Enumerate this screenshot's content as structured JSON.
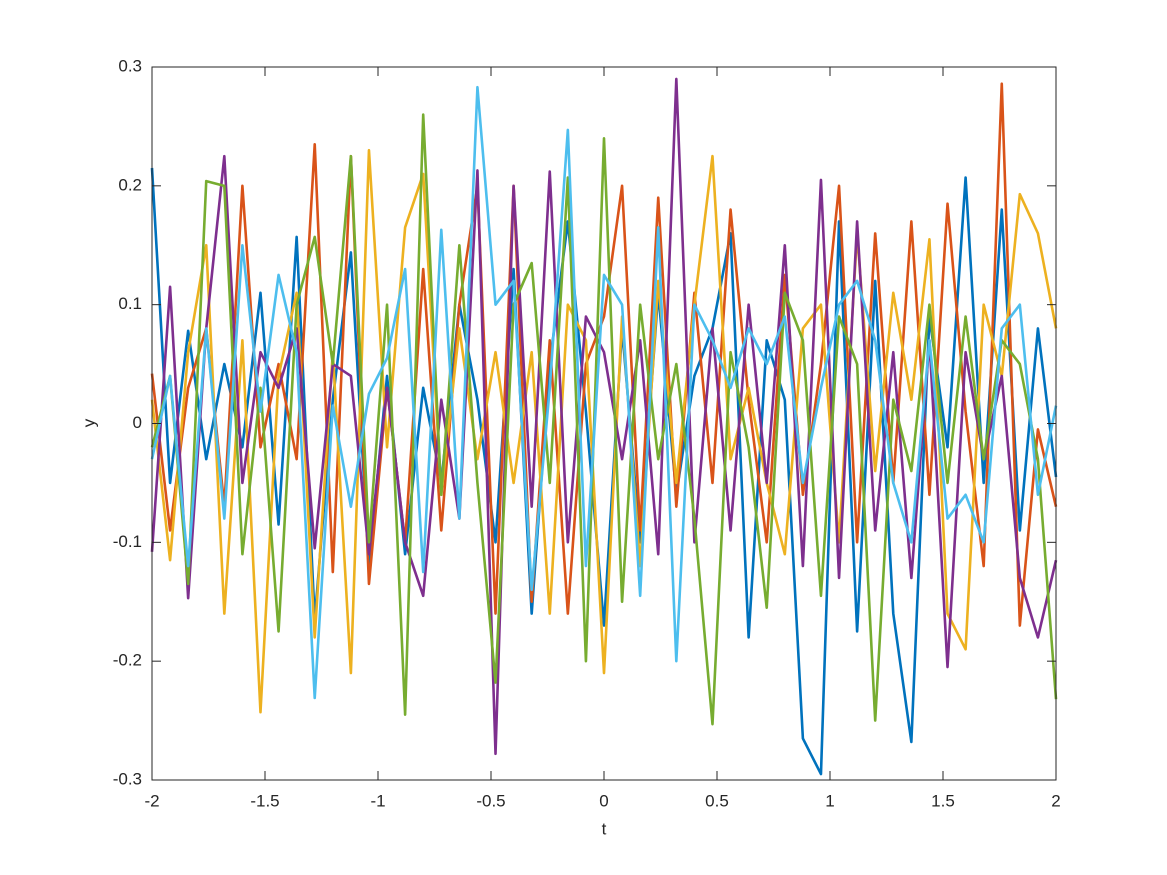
{
  "chart_data": {
    "type": "line",
    "x_label": "t",
    "y_label": "y",
    "x": [
      -2,
      -1.92,
      -1.84,
      -1.76,
      -1.68,
      -1.6,
      -1.52,
      -1.44,
      -1.36,
      -1.28,
      -1.2,
      -1.12,
      -1.04,
      -0.96,
      -0.88,
      -0.8,
      -0.72,
      -0.64,
      -0.56,
      -0.48,
      -0.4,
      -0.32,
      -0.24,
      -0.16,
      -0.08,
      0,
      0.08,
      0.16,
      0.24,
      0.32,
      0.4,
      0.48,
      0.56,
      0.64,
      0.72,
      0.8,
      0.88,
      0.96,
      1.04,
      1.12,
      1.2,
      1.28,
      1.36,
      1.44,
      1.52,
      1.6,
      1.68,
      1.76,
      1.84,
      1.92,
      2
    ],
    "series": [
      {
        "color": "#0072BD",
        "values": [
          0.215,
          -0.05,
          0.078,
          -0.03,
          0.05,
          -0.02,
          0.11,
          -0.085,
          0.157,
          -0.165,
          0.02,
          0.144,
          -0.12,
          0.04,
          -0.11,
          0.03,
          -0.05,
          0.1,
          0.02,
          -0.1,
          0.13,
          -0.16,
          0.05,
          0.17,
          0.01,
          -0.17,
          0.08,
          -0.1,
          0.11,
          -0.06,
          0.04,
          0.08,
          0.16,
          -0.18,
          0.07,
          0.02,
          -0.265,
          -0.295,
          0.17,
          -0.175,
          0.12,
          -0.16,
          -0.268,
          0.09,
          -0.02,
          0.207,
          -0.05,
          0.18,
          -0.09,
          0.08,
          -0.045
        ]
      },
      {
        "color": "#D95319",
        "values": [
          0.042,
          -0.09,
          0.03,
          0.08,
          -0.07,
          0.2,
          -0.02,
          0.05,
          -0.03,
          0.235,
          -0.125,
          0.225,
          -0.135,
          0.03,
          -0.1,
          0.13,
          -0.09,
          0.1,
          0.2,
          -0.16,
          0.2,
          -0.15,
          0.07,
          -0.16,
          0.05,
          0.09,
          0.2,
          -0.09,
          0.19,
          -0.07,
          0.11,
          -0.05,
          0.18,
          0.02,
          -0.1,
          0.125,
          -0.06,
          0.05,
          0.2,
          -0.1,
          0.16,
          -0.05,
          0.17,
          -0.06,
          0.185,
          0.01,
          -0.12,
          0.286,
          -0.17,
          -0.005,
          -0.07
        ]
      },
      {
        "color": "#EDB120",
        "values": [
          0.02,
          -0.115,
          0.06,
          0.15,
          -0.16,
          0.07,
          -0.243,
          0.04,
          0.11,
          -0.18,
          0.06,
          -0.21,
          0.23,
          -0.02,
          0.165,
          0.21,
          -0.06,
          0.08,
          -0.03,
          0.06,
          -0.05,
          0.06,
          -0.16,
          0.1,
          0.07,
          -0.21,
          0.09,
          -0.12,
          0.12,
          -0.05,
          0.1,
          0.225,
          -0.03,
          0.03,
          -0.05,
          -0.11,
          0.08,
          0.1,
          -0.1,
          0.16,
          -0.04,
          0.11,
          0.02,
          0.155,
          -0.16,
          -0.19,
          0.1,
          0.04,
          0.193,
          0.16,
          0.08
        ]
      },
      {
        "color": "#7E2F8E",
        "values": [
          -0.108,
          0.115,
          -0.147,
          0.08,
          0.225,
          -0.05,
          0.06,
          0.03,
          0.08,
          -0.105,
          0.05,
          0.04,
          -0.11,
          0.03,
          -0.1,
          -0.145,
          0.02,
          -0.08,
          0.213,
          -0.278,
          0.2,
          -0.07,
          0.212,
          -0.1,
          0.09,
          0.06,
          -0.03,
          0.07,
          -0.11,
          0.29,
          -0.1,
          0.08,
          -0.09,
          0.1,
          -0.05,
          0.15,
          -0.12,
          0.205,
          -0.13,
          0.17,
          -0.09,
          0.06,
          -0.13,
          0.07,
          -0.205,
          0.06,
          -0.03,
          0.04,
          -0.13,
          -0.18,
          -0.115
        ]
      },
      {
        "color": "#77AC30",
        "values": [
          -0.02,
          0.04,
          -0.135,
          0.204,
          0.2,
          -0.11,
          0.03,
          -0.175,
          0.1,
          0.157,
          0.05,
          0.225,
          -0.1,
          0.1,
          -0.245,
          0.26,
          -0.06,
          0.15,
          -0.05,
          -0.218,
          0.1,
          0.135,
          -0.05,
          0.207,
          -0.2,
          0.24,
          -0.15,
          0.1,
          -0.03,
          0.05,
          -0.08,
          -0.253,
          0.06,
          -0.02,
          -0.155,
          0.11,
          0.07,
          -0.145,
          0.09,
          0.05,
          -0.25,
          0.02,
          -0.04,
          0.1,
          -0.05,
          0.09,
          -0.03,
          0.07,
          0.05,
          -0.03,
          -0.232
        ]
      },
      {
        "color": "#4DBEEE",
        "values": [
          -0.03,
          0.04,
          -0.12,
          0.08,
          -0.08,
          0.15,
          0.01,
          0.125,
          0.06,
          -0.231,
          0.015,
          -0.07,
          0.025,
          0.055,
          0.13,
          -0.125,
          0.163,
          -0.08,
          0.283,
          0.1,
          0.12,
          -0.14,
          0.03,
          0.247,
          -0.12,
          0.125,
          0.1,
          -0.145,
          0.165,
          -0.2,
          0.1,
          0.07,
          0.03,
          0.08,
          0.05,
          0.09,
          -0.05,
          0.03,
          0.1,
          0.12,
          0.07,
          -0.05,
          -0.1,
          0.07,
          -0.08,
          -0.06,
          -0.1,
          0.08,
          0.1,
          -0.06,
          0.015
        ]
      }
    ],
    "xlim": [
      -2,
      2
    ],
    "xticks": [
      -2,
      -1.5,
      -1,
      -0.5,
      0,
      0.5,
      1,
      1.5,
      2
    ],
    "ylim": [
      -0.3,
      0.3
    ],
    "yticks": [
      -0.3,
      -0.2,
      -0.1,
      0,
      0.1,
      0.2,
      0.3
    ],
    "grid": false
  }
}
